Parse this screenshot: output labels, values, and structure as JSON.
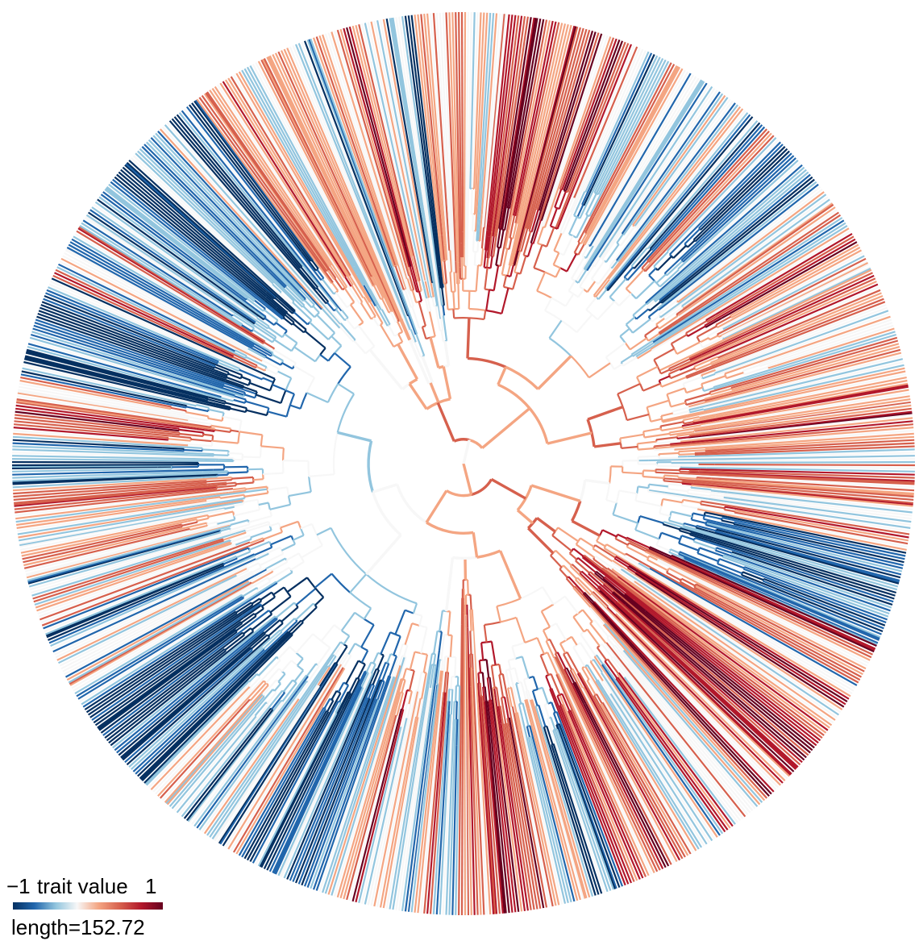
{
  "figure": {
    "type": "circular-phylogenetic-tree",
    "trait_name": "trait value",
    "scale_min_label": "−1",
    "scale_max_label": "1",
    "length_label": "length=152.72",
    "colors": {
      "low": "#053061",
      "mid_low": "#2166ac",
      "light_low": "#92c5de",
      "neutral": "#f7f7f7",
      "light_high": "#f4a582",
      "mid_high": "#d6604d",
      "high": "#b2182b",
      "very_high": "#67001f"
    },
    "random_seed": 17,
    "tip_count": 900
  }
}
